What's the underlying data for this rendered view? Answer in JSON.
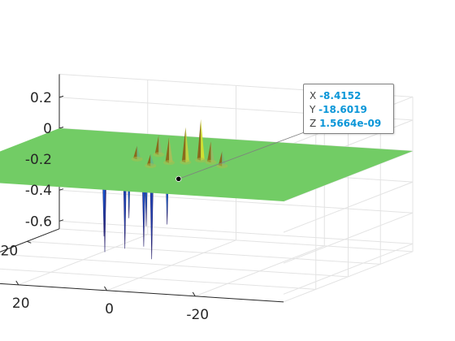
{
  "chart_data": {
    "type": "surface3d",
    "title": "",
    "xlabel": "",
    "ylabel": "",
    "zlabel": "",
    "xlim": [
      -40,
      40
    ],
    "ylim": [
      -40,
      40
    ],
    "zlim": [
      -0.65,
      0.35
    ],
    "x_ticks": [
      -20,
      0,
      20
    ],
    "y_ticks": [
      -20,
      0,
      20
    ],
    "z_ticks": [
      -0.6,
      -0.4,
      -0.2,
      0,
      0.2
    ],
    "x_tick_labels": [
      "-20",
      "0",
      "20"
    ],
    "y_tick_labels": [
      "-20",
      "0",
      "20"
    ],
    "z_tick_labels": [
      "-0.6",
      "-0.4",
      "-0.2",
      "0",
      "0.2"
    ],
    "grid": true,
    "colormap": "parula",
    "plane_color": "#72cc65",
    "positive_peaks": [
      {
        "x": -3,
        "y": 10,
        "z": 0.26
      },
      {
        "x": -1,
        "y": 6,
        "z": 0.22
      },
      {
        "x": 2,
        "y": 4,
        "z": 0.16
      },
      {
        "x": -6,
        "y": 8,
        "z": 0.13
      },
      {
        "x": 8,
        "y": 14,
        "z": 0.12
      },
      {
        "x": -10,
        "y": 4,
        "z": 0.09
      },
      {
        "x": 4,
        "y": -2,
        "z": 0.07
      },
      {
        "x": 10,
        "y": 6,
        "z": 0.08
      }
    ],
    "negative_peaks": [
      {
        "x": 18,
        "y": 8,
        "z": -0.63
      },
      {
        "x": 3,
        "y": -4,
        "z": -0.6
      },
      {
        "x": 12,
        "y": 4,
        "z": -0.58
      },
      {
        "x": 7,
        "y": 2,
        "z": -0.55
      },
      {
        "x": 16,
        "y": 2,
        "z": -0.5
      },
      {
        "x": 9,
        "y": 9,
        "z": -0.45
      },
      {
        "x": 5,
        "y": 11,
        "z": -0.44
      },
      {
        "x": 14,
        "y": 12,
        "z": -0.42
      }
    ],
    "datatip": {
      "x": -8.4152,
      "y": -18.6019,
      "z": 1.5664e-09
    }
  },
  "datatip": {
    "x_key": "X",
    "x_value": "-8.4152",
    "y_key": "Y",
    "y_value": "-18.6019",
    "z_key": "Z",
    "z_value": "1.5664e-09"
  }
}
